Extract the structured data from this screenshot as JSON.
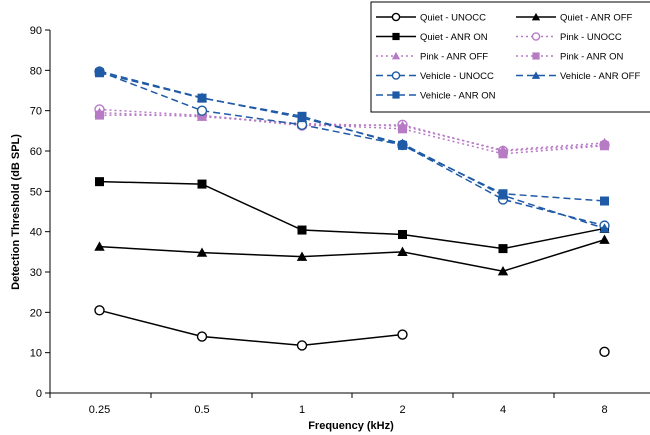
{
  "chart_data": {
    "type": "line",
    "title": "",
    "xlabel": "Frequency (kHz)",
    "ylabel": "Detection Threshold (dB SPL)",
    "categories": [
      "0.25",
      "0.5",
      "1",
      "2",
      "4",
      "8"
    ],
    "ylim": [
      0,
      90
    ],
    "yticks": [
      0,
      10,
      20,
      30,
      40,
      50,
      60,
      70,
      80,
      90
    ],
    "grid": false,
    "legend_position": "top-right",
    "series": [
      {
        "name": "Quiet - UNOCC",
        "color": "#000000",
        "dash": "solid",
        "marker": "circle-open",
        "values": [
          20.5,
          14,
          11.8,
          14.5,
          null,
          10.2
        ]
      },
      {
        "name": "Quiet - ANR OFF",
        "color": "#000000",
        "dash": "solid",
        "marker": "triangle",
        "values": [
          36.3,
          34.8,
          33.8,
          35,
          30.2,
          38
        ]
      },
      {
        "name": "Quiet - ANR ON",
        "color": "#000000",
        "dash": "solid",
        "marker": "square",
        "values": [
          52.4,
          51.8,
          40.4,
          39.3,
          35.8,
          40.8
        ]
      },
      {
        "name": "Pink - UNOCC",
        "color": "#b77bc6",
        "dash": "dotted",
        "marker": "circle-open",
        "values": [
          70.3,
          68.8,
          66.3,
          66.5,
          60,
          61.5
        ]
      },
      {
        "name": "Pink - ANR OFF",
        "color": "#b77bc6",
        "dash": "dotted",
        "marker": "triangle",
        "values": [
          69.5,
          68.5,
          66.8,
          66.2,
          60.2,
          62
        ]
      },
      {
        "name": "Pink - ANR ON",
        "color": "#b77bc6",
        "dash": "dotted",
        "marker": "square",
        "values": [
          68.9,
          68.8,
          66.6,
          65.5,
          59.3,
          61.3
        ]
      },
      {
        "name": "Vehicle - UNOCC",
        "color": "#1f5aa6",
        "dash": "dashed",
        "marker": "circle-open",
        "values": [
          79.7,
          70,
          66.5,
          61.5,
          48,
          41.5
        ]
      },
      {
        "name": "Vehicle - ANR OFF",
        "color": "#1f5aa6",
        "dash": "dashed",
        "marker": "triangle",
        "values": [
          79.8,
          73.2,
          68.2,
          61.8,
          49,
          40.8
        ]
      },
      {
        "name": "Vehicle - ANR ON",
        "color": "#1f5aa6",
        "dash": "dashed",
        "marker": "square",
        "values": [
          79.4,
          73.1,
          68.6,
          61.4,
          49.4,
          47.6
        ]
      }
    ]
  }
}
